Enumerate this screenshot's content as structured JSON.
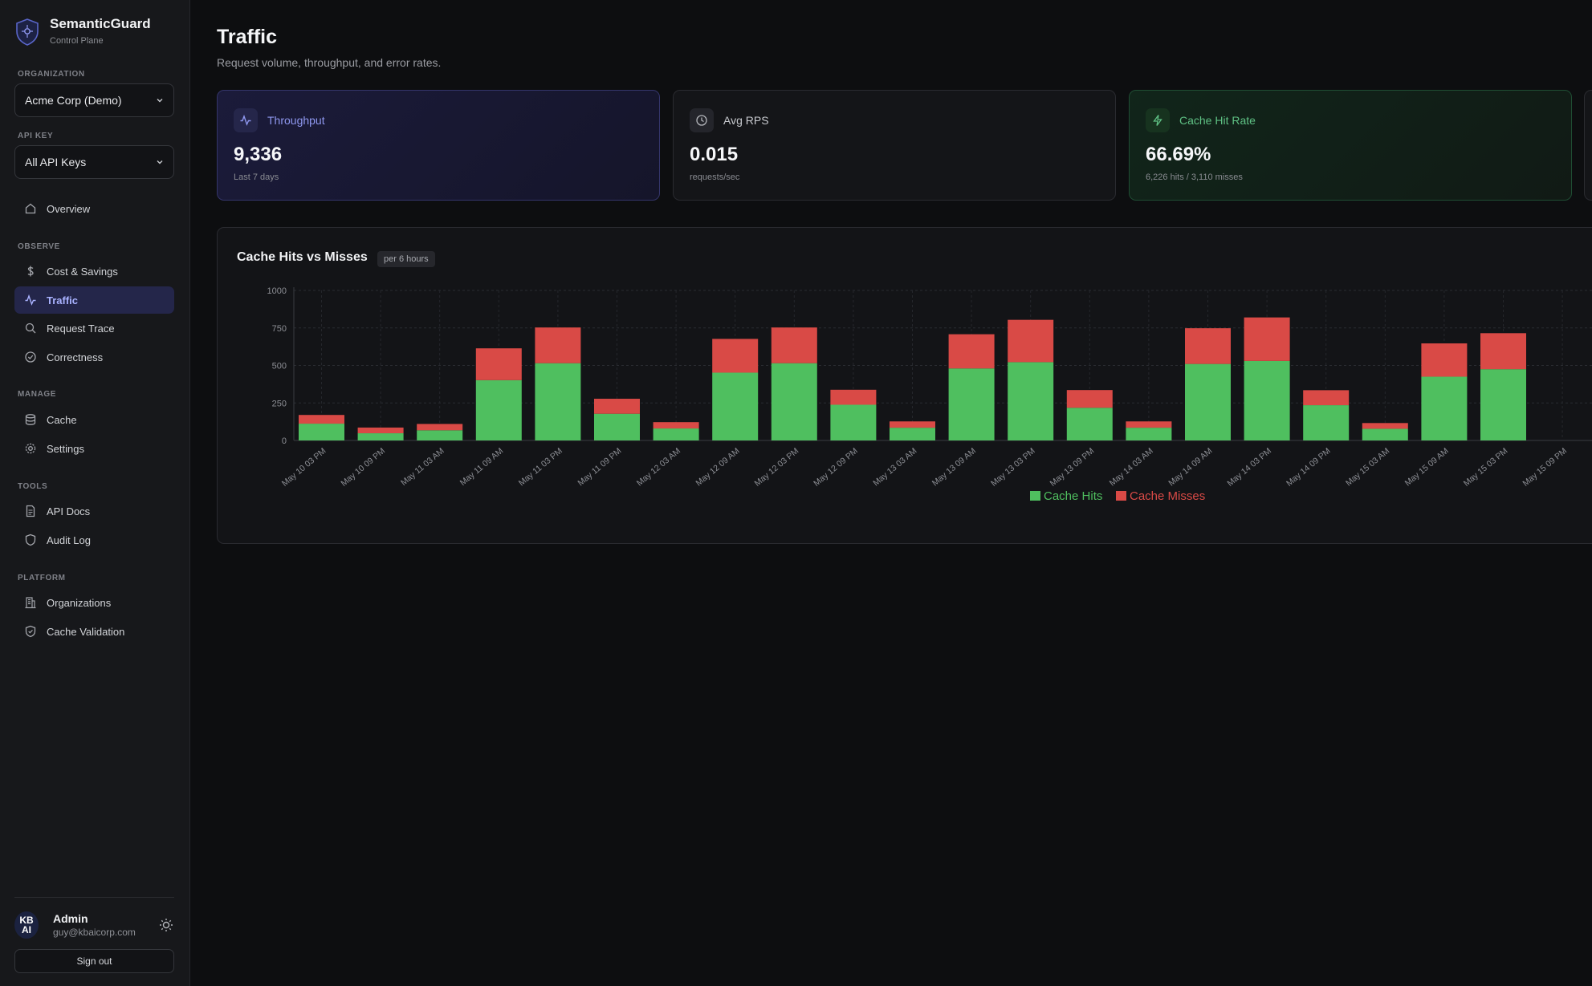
{
  "brand": {
    "name": "SemanticGuard",
    "subtitle": "Control Plane"
  },
  "sidebar": {
    "org_label": "ORGANIZATION",
    "org_value": "Acme Corp (Demo)",
    "apikey_label": "API KEY",
    "apikey_value": "All API Keys",
    "overview": "Overview",
    "sections": {
      "observe": "OBSERVE",
      "manage": "MANAGE",
      "tools": "TOOLS",
      "platform": "PLATFORM"
    },
    "items": {
      "cost": "Cost & Savings",
      "traffic": "Traffic",
      "trace": "Request Trace",
      "correctness": "Correctness",
      "cache": "Cache",
      "settings": "Settings",
      "api_docs": "API Docs",
      "audit_log": "Audit Log",
      "organizations": "Organizations",
      "cache_validation": "Cache Validation"
    }
  },
  "user": {
    "avatar_line1": "KB",
    "avatar_line2": "AI",
    "name": "Admin",
    "email": "guy@kbaicorp.com",
    "signout": "Sign out"
  },
  "page": {
    "title": "Traffic",
    "subtitle": "Request volume, throughput, and error rates."
  },
  "cards": {
    "throughput": {
      "label": "Throughput",
      "value": "9,336",
      "note": "Last 7 days"
    },
    "avg_rps": {
      "label": "Avg RPS",
      "value": "0.015",
      "note": "requests/sec"
    },
    "cache_hit": {
      "label": "Cache Hit Rate",
      "value": "66.69%",
      "note": "6,226 hits / 3,110 misses"
    }
  },
  "colors": {
    "hits": "#4fbf5f",
    "misses": "#d94a46",
    "accent": "#8f98f0"
  },
  "chart_title": "Cache Hits vs Misses",
  "chart_badge": "per 6 hours",
  "chart_data": {
    "type": "bar",
    "stacked": true,
    "title": "Cache Hits vs Misses",
    "ylim": [
      0,
      1000
    ],
    "yticks": [
      0,
      250,
      500,
      750,
      1000
    ],
    "grid": true,
    "legend": "bottom",
    "categories": [
      "May 10 03 PM",
      "May 10 09 PM",
      "May 11 03 AM",
      "May 11 09 AM",
      "May 11 03 PM",
      "May 11 09 PM",
      "May 12 03 AM",
      "May 12 09 AM",
      "May 12 03 PM",
      "May 12 09 PM",
      "May 13 03 AM",
      "May 13 09 AM",
      "May 13 03 PM",
      "May 13 09 PM",
      "May 14 03 AM",
      "May 14 09 AM",
      "May 14 03 PM",
      "May 14 09 PM",
      "May 15 03 AM",
      "May 15 09 AM",
      "May 15 03 PM",
      "May 15 09 PM",
      "Ma"
    ],
    "series": [
      {
        "name": "Cache Hits",
        "values": [
          112,
          48,
          68,
          402,
          515,
          178,
          80,
          452,
          515,
          238,
          85,
          480,
          522,
          218,
          85,
          510,
          530,
          235,
          78,
          425,
          475,
          0,
          0
        ]
      },
      {
        "name": "Cache Misses",
        "values": [
          58,
          38,
          42,
          212,
          238,
          100,
          42,
          225,
          238,
          100,
          42,
          228,
          282,
          118,
          42,
          238,
          290,
          100,
          38,
          222,
          240,
          0,
          0
        ]
      }
    ]
  }
}
